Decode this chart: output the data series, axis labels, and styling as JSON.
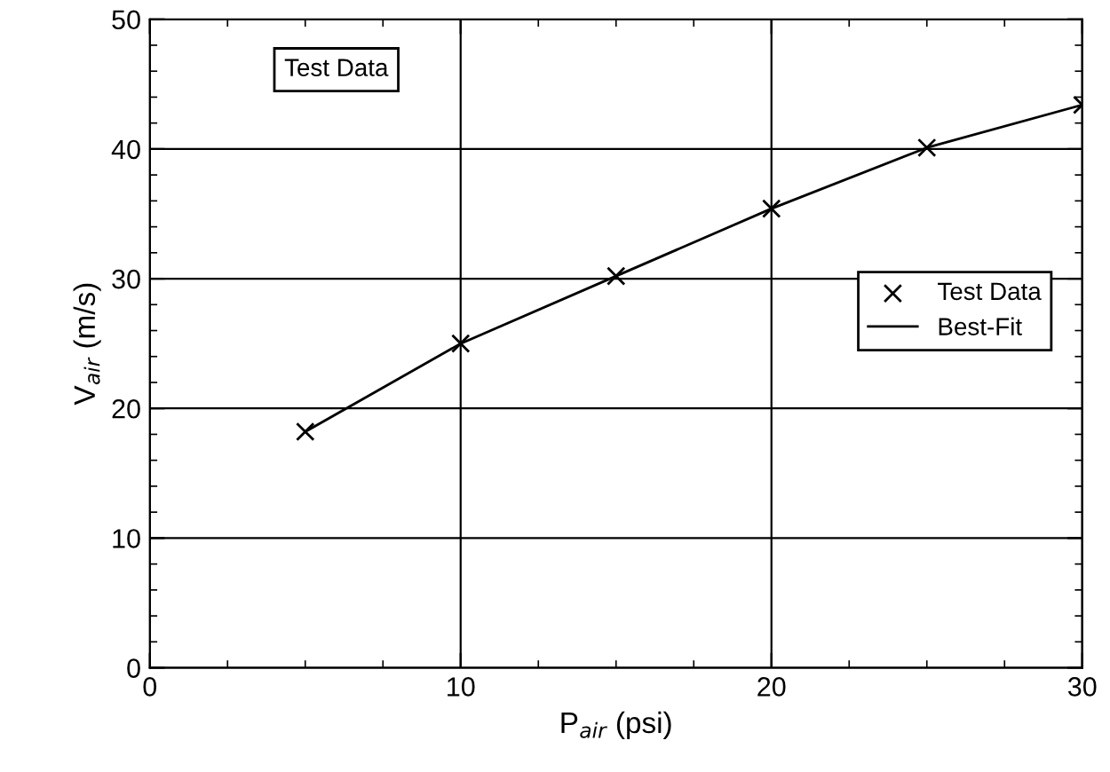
{
  "chart_data": {
    "type": "scatter",
    "xlabel": "P$_{air}$ (psi)",
    "ylabel": "V$_{air}$ (m/s)",
    "annotations": [
      "Test Data"
    ],
    "xlim": [
      0,
      30
    ],
    "xticks": [
      0,
      10,
      20,
      30
    ],
    "ylim": [
      0,
      50
    ],
    "yticks": [
      0,
      10,
      20,
      30,
      40,
      50
    ],
    "grid": true,
    "legend": "right",
    "series": [
      {
        "name": "Test Data",
        "marker": "cross",
        "color": "#000000",
        "x": [
          5,
          10,
          15,
          20,
          25,
          30
        ],
        "values": [
          18.2,
          25.0,
          30.2,
          35.4,
          40.1,
          43.4
        ]
      },
      {
        "name": "Best-Fit",
        "type": "line",
        "marker": "none",
        "line_style": "solid",
        "color": "#000000",
        "x": [
          5,
          10,
          15,
          20,
          25,
          30
        ],
        "values": [
          18.2,
          25.0,
          30.2,
          35.4,
          40.1,
          43.4
        ]
      }
    ]
  }
}
